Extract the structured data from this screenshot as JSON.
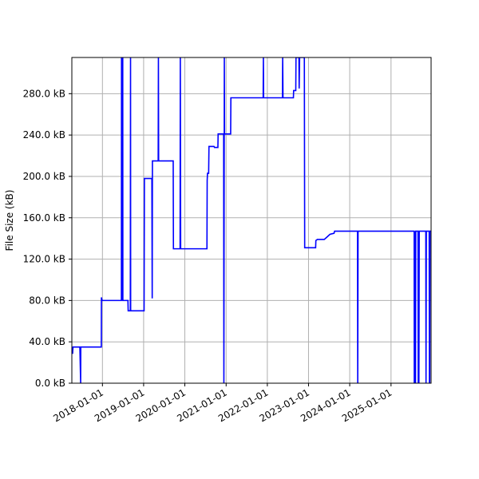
{
  "chart_data": {
    "type": "line",
    "title": "",
    "xlabel": "",
    "ylabel": "File Size (kB)",
    "grid": true,
    "legend": "none",
    "xlim": [
      "2017-04-05",
      "2025-12-22"
    ],
    "ylim": [
      0,
      315
    ],
    "x_ticks": [
      "2018-01-01",
      "2019-01-01",
      "2020-01-01",
      "2021-01-01",
      "2022-01-01",
      "2023-01-01",
      "2024-01-01",
      "2025-01-01"
    ],
    "y_ticks": [
      {
        "value": 0,
        "label": "0.0 kB"
      },
      {
        "value": 40,
        "label": "40.0 kB"
      },
      {
        "value": 80,
        "label": "80.0 kB"
      },
      {
        "value": 120,
        "label": "120.0 kB"
      },
      {
        "value": 160,
        "label": "160.0 kB"
      },
      {
        "value": 200,
        "label": "200.0 kB"
      },
      {
        "value": 240,
        "label": "240.0 kB"
      },
      {
        "value": 280,
        "label": "280.0 kB"
      }
    ],
    "series": [
      {
        "color": "#0000ff",
        "points": [
          [
            "2017-04-05",
            29
          ],
          [
            "2017-04-12",
            29
          ],
          [
            "2017-04-15",
            35
          ],
          [
            "2017-06-15",
            35
          ],
          [
            "2017-06-22",
            0
          ],
          [
            "2017-06-23",
            35
          ],
          [
            "2017-12-22",
            35
          ],
          [
            "2017-12-23",
            83
          ],
          [
            "2017-12-28",
            80
          ],
          [
            "2018-06-18",
            80
          ],
          [
            "2018-06-19",
            315
          ],
          [
            "2018-06-21",
            80
          ],
          [
            "2018-06-25",
            315
          ],
          [
            "2018-06-26",
            80
          ],
          [
            "2018-06-30",
            315
          ],
          [
            "2018-07-01",
            80
          ],
          [
            "2018-08-15",
            80
          ],
          [
            "2018-08-17",
            70
          ],
          [
            "2018-09-05",
            70
          ],
          [
            "2018-09-07",
            315
          ],
          [
            "2018-09-08",
            70
          ],
          [
            "2019-01-05",
            70
          ],
          [
            "2019-01-08",
            198
          ],
          [
            "2019-03-15",
            198
          ],
          [
            "2019-03-18",
            82
          ],
          [
            "2019-03-20",
            215
          ],
          [
            "2019-05-10",
            215
          ],
          [
            "2019-05-12",
            315
          ],
          [
            "2019-05-14",
            215
          ],
          [
            "2019-09-20",
            215
          ],
          [
            "2019-09-22",
            130
          ],
          [
            "2019-11-20",
            130
          ],
          [
            "2019-11-22",
            315
          ],
          [
            "2019-11-25",
            130
          ],
          [
            "2020-07-15",
            130
          ],
          [
            "2020-07-17",
            196
          ],
          [
            "2020-07-20",
            203
          ],
          [
            "2020-07-30",
            203
          ],
          [
            "2020-08-02",
            229
          ],
          [
            "2020-09-15",
            229
          ],
          [
            "2020-09-20",
            228
          ],
          [
            "2020-10-20",
            228
          ],
          [
            "2020-10-22",
            241
          ],
          [
            "2020-12-10",
            241
          ],
          [
            "2020-12-12",
            0
          ],
          [
            "2020-12-16",
            315
          ],
          [
            "2020-12-18",
            241
          ],
          [
            "2021-02-10",
            241
          ],
          [
            "2021-02-12",
            276
          ],
          [
            "2021-11-25",
            276
          ],
          [
            "2021-11-27",
            315
          ],
          [
            "2021-11-29",
            276
          ],
          [
            "2022-05-15",
            276
          ],
          [
            "2022-05-17",
            315
          ],
          [
            "2022-05-20",
            276
          ],
          [
            "2022-08-20",
            276
          ],
          [
            "2022-08-22",
            283
          ],
          [
            "2022-09-10",
            283
          ],
          [
            "2022-09-12",
            315
          ],
          [
            "2022-10-08",
            315
          ],
          [
            "2022-10-10",
            285
          ],
          [
            "2022-10-14",
            315
          ],
          [
            "2022-11-25",
            315
          ],
          [
            "2022-11-28",
            131
          ],
          [
            "2023-03-05",
            131
          ],
          [
            "2023-03-07",
            138
          ],
          [
            "2023-03-20",
            139
          ],
          [
            "2023-05-20",
            139
          ],
          [
            "2023-06-10",
            141
          ],
          [
            "2023-07-10",
            144
          ],
          [
            "2023-08-15",
            145
          ],
          [
            "2023-08-20",
            147
          ],
          [
            "2024-03-10",
            147
          ],
          [
            "2024-03-12",
            0
          ],
          [
            "2024-03-15",
            147
          ],
          [
            "2025-07-25",
            147
          ],
          [
            "2025-07-26",
            0
          ],
          [
            "2025-07-28",
            147
          ],
          [
            "2025-07-31",
            0
          ],
          [
            "2025-08-02",
            147
          ],
          [
            "2025-08-06",
            0
          ],
          [
            "2025-08-08",
            147
          ],
          [
            "2025-08-28",
            147
          ],
          [
            "2025-08-30",
            0
          ],
          [
            "2025-09-01",
            147
          ],
          [
            "2025-09-05",
            0
          ],
          [
            "2025-09-08",
            147
          ],
          [
            "2025-11-05",
            147
          ],
          [
            "2025-11-07",
            0
          ],
          [
            "2025-11-10",
            147
          ],
          [
            "2025-12-05",
            147
          ],
          [
            "2025-12-07",
            0
          ],
          [
            "2025-12-09",
            147
          ],
          [
            "2025-12-10",
            0
          ],
          [
            "2025-12-12",
            147
          ],
          [
            "2025-12-22",
            147
          ]
        ]
      }
    ]
  }
}
